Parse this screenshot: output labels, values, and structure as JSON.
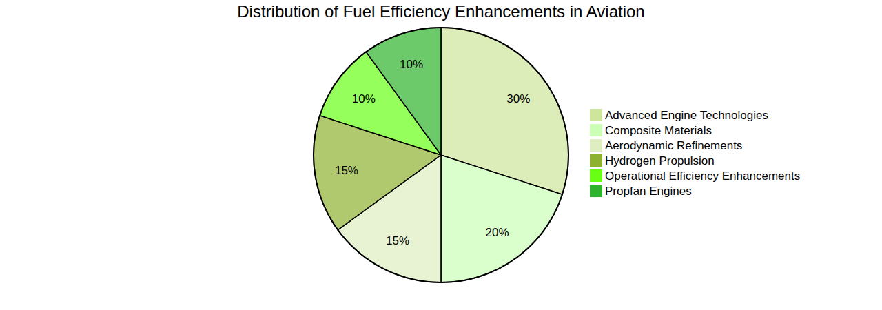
{
  "chart_data": {
    "type": "pie",
    "title": "Distribution of Fuel Efficiency Enhancements in Aviation",
    "categories": [
      "Advanced Engine Technologies",
      "Composite Materials",
      "Aerodynamic Refinements",
      "Hydrogen Propulsion",
      "Operational Efficiency Enhancements",
      "Propfan Engines"
    ],
    "values": [
      30,
      20,
      15,
      15,
      10,
      10
    ],
    "value_labels": [
      "30%",
      "20%",
      "15%",
      "15%",
      "10%",
      "10%"
    ],
    "colors": [
      "#cde69b",
      "#ccffb6",
      "#deeec0",
      "#8eb230",
      "#68ff15",
      "#2fb32c"
    ],
    "data_labels": true,
    "legend": "right"
  }
}
